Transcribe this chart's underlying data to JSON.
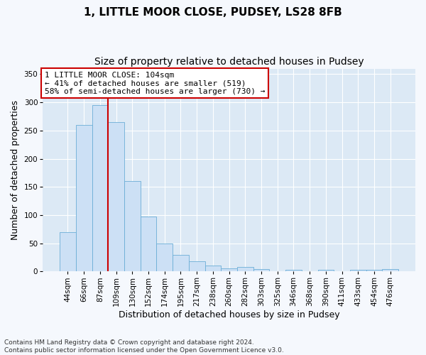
{
  "title_line1": "1, LITTLE MOOR CLOSE, PUDSEY, LS28 8FB",
  "title_line2": "Size of property relative to detached houses in Pudsey",
  "xlabel": "Distribution of detached houses by size in Pudsey",
  "ylabel": "Number of detached properties",
  "footnote": "Contains HM Land Registry data © Crown copyright and database right 2024.\nContains public sector information licensed under the Open Government Licence v3.0.",
  "bin_labels": [
    "44sqm",
    "66sqm",
    "87sqm",
    "109sqm",
    "130sqm",
    "152sqm",
    "174sqm",
    "195sqm",
    "217sqm",
    "238sqm",
    "260sqm",
    "282sqm",
    "303sqm",
    "325sqm",
    "346sqm",
    "368sqm",
    "390sqm",
    "411sqm",
    "433sqm",
    "454sqm",
    "476sqm"
  ],
  "bar_values": [
    70,
    260,
    295,
    265,
    160,
    98,
    49,
    29,
    18,
    10,
    6,
    8,
    4,
    0,
    3,
    0,
    3,
    0,
    3,
    3,
    4
  ],
  "bar_color": "#cce0f5",
  "bar_edge_color": "#6baed6",
  "vline_color": "#cc0000",
  "vline_pos": 2.5,
  "annotation_text": "1 LITTLE MOOR CLOSE: 104sqm\n← 41% of detached houses are smaller (519)\n58% of semi-detached houses are larger (730) →",
  "annotation_box_facecolor": "#ffffff",
  "annotation_box_edgecolor": "#cc0000",
  "ylim": [
    0,
    360
  ],
  "yticks": [
    0,
    50,
    100,
    150,
    200,
    250,
    300,
    350
  ],
  "plot_bg_color": "#dce9f5",
  "fig_bg_color": "#f5f8fd",
  "grid_color": "#ffffff",
  "title1_fontsize": 11,
  "title2_fontsize": 10,
  "axis_label_fontsize": 9,
  "tick_fontsize": 7.5,
  "annotation_fontsize": 8,
  "footnote_fontsize": 6.5
}
